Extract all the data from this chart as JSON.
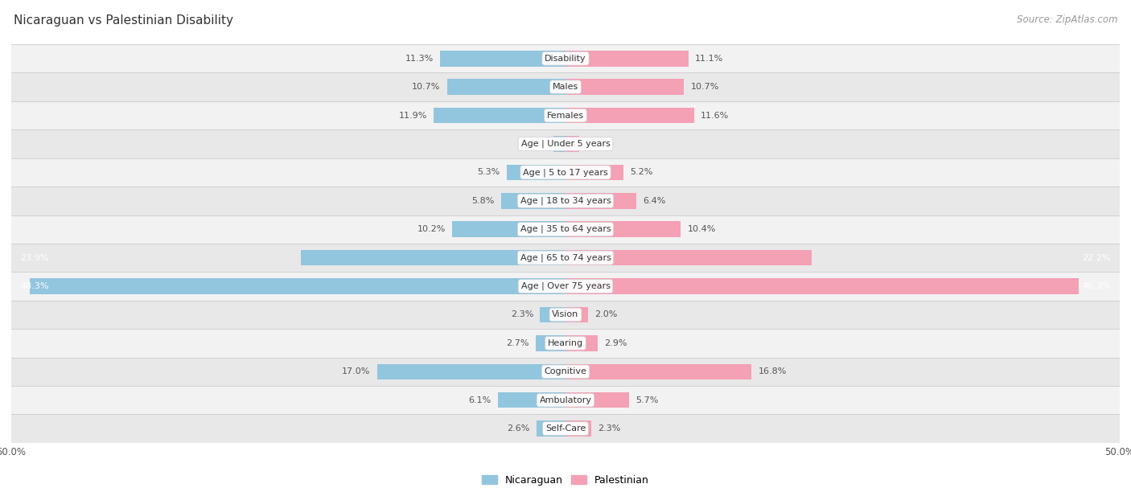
{
  "title": "Nicaraguan vs Palestinian Disability",
  "source": "Source: ZipAtlas.com",
  "categories": [
    "Disability",
    "Males",
    "Females",
    "Age | Under 5 years",
    "Age | 5 to 17 years",
    "Age | 18 to 34 years",
    "Age | 35 to 64 years",
    "Age | 65 to 74 years",
    "Age | Over 75 years",
    "Vision",
    "Hearing",
    "Cognitive",
    "Ambulatory",
    "Self-Care"
  ],
  "nicaraguan": [
    11.3,
    10.7,
    11.9,
    1.1,
    5.3,
    5.8,
    10.2,
    23.9,
    48.3,
    2.3,
    2.7,
    17.0,
    6.1,
    2.6
  ],
  "palestinian": [
    11.1,
    10.7,
    11.6,
    1.2,
    5.2,
    6.4,
    10.4,
    22.2,
    46.3,
    2.0,
    2.9,
    16.8,
    5.7,
    2.3
  ],
  "nicaraguan_color": "#92c5de",
  "palestinian_color": "#f4a0b5",
  "x_max": 50.0,
  "row_bg_light": "#f2f2f2",
  "row_bg_dark": "#e8e8e8",
  "title_fontsize": 11,
  "label_fontsize": 8,
  "value_fontsize": 8,
  "legend_fontsize": 9,
  "source_fontsize": 8.5
}
